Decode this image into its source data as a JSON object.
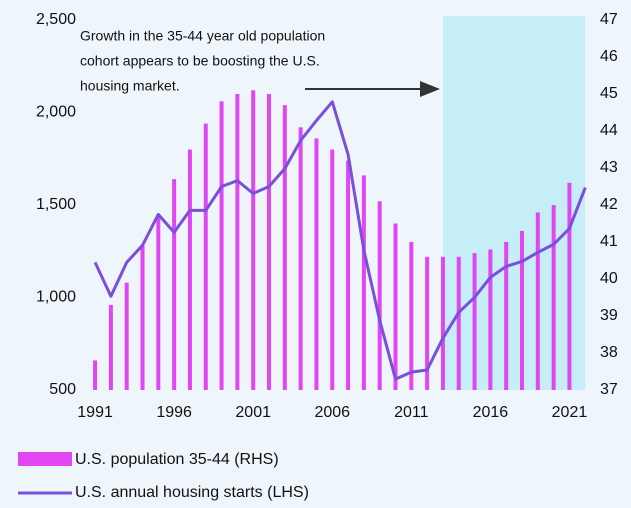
{
  "chart_data": {
    "type": "bar_line",
    "annotation": [
      "Growth in the 35-44 year old population",
      "cohort appears to be boosting the U.S.",
      "housing market."
    ],
    "xlim": [
      1990.3,
      2022.3
    ],
    "xticks": [
      1991,
      1996,
      2001,
      2006,
      2011,
      2016,
      2021
    ],
    "ylim": [
      500,
      2500
    ],
    "yticks": [
      {
        "value": 500,
        "label": "500"
      },
      {
        "value": 1000,
        "label": "1,000"
      },
      {
        "value": 1500,
        "label": "1,500"
      },
      {
        "value": 2000,
        "label": "2,000"
      },
      {
        "value": 2500,
        "label": "2,500"
      }
    ],
    "y2lim": [
      37,
      47
    ],
    "y2ticks": [
      37,
      38,
      39,
      40,
      41,
      42,
      43,
      44,
      45,
      46,
      47
    ],
    "highlight_xrange": [
      2013,
      2022
    ],
    "highlight_color": "#c6eef9",
    "series": [
      {
        "name": "U.S. population 35-44 (RHS)",
        "type": "bar",
        "axis": "y2",
        "color": "#e046f2",
        "x": [
          1991,
          1992,
          1993,
          1994,
          1995,
          1996,
          1997,
          1998,
          1999,
          2000,
          2001,
          2002,
          2003,
          2004,
          2005,
          2006,
          2007,
          2008,
          2009,
          2010,
          2011,
          2012,
          2013,
          2014,
          2015,
          2016,
          2017,
          2018,
          2019,
          2020,
          2021
        ],
        "values": [
          37.8,
          39.3,
          39.9,
          40.9,
          41.7,
          42.7,
          43.5,
          44.2,
          44.8,
          45.0,
          45.1,
          45.0,
          44.7,
          44.1,
          43.8,
          43.5,
          43.2,
          42.8,
          42.1,
          41.5,
          41.0,
          40.6,
          40.6,
          40.6,
          40.7,
          40.8,
          41.0,
          41.3,
          41.8,
          42.0,
          42.6
        ]
      },
      {
        "name": "U.S. annual housing starts (LHS)",
        "type": "line",
        "axis": "y",
        "color": "#7a4fd9",
        "x": [
          1991,
          1992,
          1993,
          1994,
          1995,
          1996,
          1997,
          1998,
          1999,
          2000,
          2001,
          2002,
          2003,
          2004,
          2005,
          2006,
          2007,
          2008,
          2009,
          2010,
          2011,
          2012,
          2013,
          2014,
          2015,
          2016,
          2017,
          2018,
          2019,
          2020,
          2021,
          2022
        ],
        "values": [
          1190,
          1007,
          1190,
          1282,
          1449,
          1352,
          1471,
          1471,
          1600,
          1632,
          1562,
          1600,
          1697,
          1848,
          1956,
          2058,
          1773,
          1255,
          877,
          559,
          597,
          608,
          780,
          920,
          1001,
          1109,
          1168,
          1195,
          1244,
          1287,
          1373,
          1594
        ]
      }
    ]
  }
}
